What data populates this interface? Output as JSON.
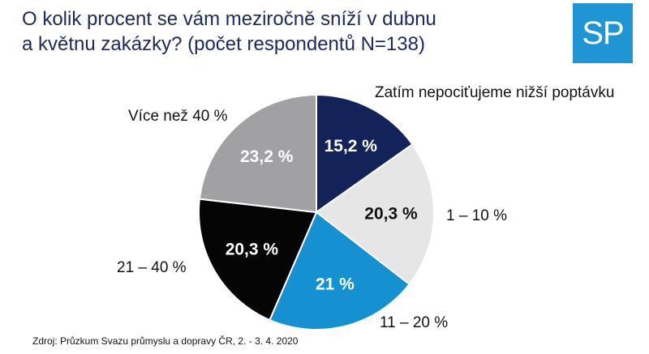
{
  "title_line1": "O kolik procent se vám meziročně sníží v dubnu",
  "title_line2": "a květnu zakázky?    (počet respondentů N=138)",
  "logo_text": "SP",
  "source": "Zdroj: Průzkum Svazu průmyslu a dopravy ČR, 2. - 3. 4. 2020",
  "chart_data": {
    "type": "pie",
    "title": "O kolik procent se vám meziročně sníží v dubnu a květnu zakázky? (počet respondentů N=138)",
    "slices": [
      {
        "category": "Zatím nepociťujeme nižší poptávku",
        "value": 15.2,
        "label": "15,2 %",
        "color": "#14225a",
        "label_color": "#ffffff"
      },
      {
        "category": "1 – 10 %",
        "value": 20.3,
        "label": "20,3 %",
        "color": "#e6e6e6",
        "label_color": "#111111"
      },
      {
        "category": "11 – 20 %",
        "value": 21,
        "label": "21 %",
        "color": "#1591d2",
        "label_color": "#ffffff"
      },
      {
        "category": "21 – 40 %",
        "value": 20.3,
        "label": "20,3 %",
        "color": "#050505",
        "label_color": "#ffffff"
      },
      {
        "category": "Více než 40 %",
        "value": 23.2,
        "label": "23,2 %",
        "color": "#a1a1a3",
        "label_color": "#ffffff"
      }
    ]
  }
}
